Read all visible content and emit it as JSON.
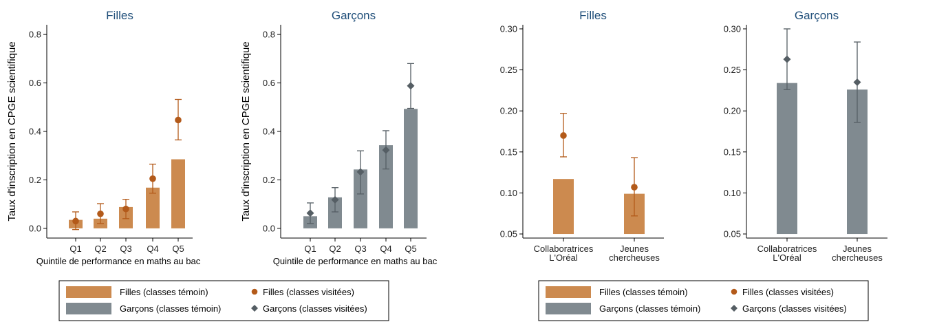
{
  "colors": {
    "filles": "#cc8a4f",
    "filles_dark": "#b35a1a",
    "garcons": "#808a90",
    "garcons_dark": "#555e64",
    "title": "#1f4e79"
  },
  "chart_data": [
    {
      "type": "bar",
      "title": "Filles",
      "xlabel": "Quintile de performance en maths au bac",
      "ylabel": "Taux d'inscription en CPGE scientifique",
      "categories": [
        "Q1",
        "Q2",
        "Q3",
        "Q4",
        "Q5"
      ],
      "ylim": [
        -0.04,
        0.84
      ],
      "yticks": [
        0.0,
        0.2,
        0.4,
        0.6,
        0.8
      ],
      "ytick_labels": [
        "0.0",
        "0.2",
        "0.4",
        "0.6",
        "0.8"
      ],
      "series": [
        {
          "name": "Filles (classes témoin)",
          "kind": "bar",
          "values": [
            0.035,
            0.04,
            0.088,
            0.168,
            0.285
          ]
        },
        {
          "name": "Filles (classes visitées)",
          "kind": "point",
          "marker": "circle",
          "values": [
            0.03,
            0.06,
            0.08,
            0.205,
            0.447
          ],
          "ci_low": [
            -0.005,
            0.02,
            0.04,
            0.145,
            0.365
          ],
          "ci_high": [
            0.068,
            0.102,
            0.12,
            0.265,
            0.532
          ]
        }
      ]
    },
    {
      "type": "bar",
      "title": "Garçons",
      "xlabel": "Quintile de performance en maths au bac",
      "ylabel": "Taux d'inscription en CPGE scientifique",
      "categories": [
        "Q1",
        "Q2",
        "Q3",
        "Q4",
        "Q5"
      ],
      "ylim": [
        -0.04,
        0.84
      ],
      "yticks": [
        0.0,
        0.2,
        0.4,
        0.6,
        0.8
      ],
      "ytick_labels": [
        "0.0",
        "0.2",
        "0.4",
        "0.6",
        "0.8"
      ],
      "series": [
        {
          "name": "Garçons (classes témoin)",
          "kind": "bar",
          "values": [
            0.05,
            0.128,
            0.243,
            0.343,
            0.493
          ]
        },
        {
          "name": "Garçons (classes visitées)",
          "kind": "point",
          "marker": "diamond",
          "values": [
            0.063,
            0.118,
            0.233,
            0.323,
            0.588
          ],
          "ci_low": [
            0.02,
            0.068,
            0.142,
            0.245,
            0.495
          ],
          "ci_high": [
            0.105,
            0.168,
            0.32,
            0.403,
            0.68
          ]
        }
      ]
    },
    {
      "type": "bar",
      "title": "Filles",
      "xlabel": "",
      "ylabel": "",
      "categories": [
        [
          "Collaboratrices",
          "L'Oréal"
        ],
        [
          "Jeunes",
          "chercheuses"
        ]
      ],
      "ylim": [
        0.045,
        0.305
      ],
      "bar_base": 0.05,
      "yticks": [
        0.05,
        0.1,
        0.15,
        0.2,
        0.25,
        0.3
      ],
      "ytick_labels": [
        "0.05",
        "0.10",
        "0.15",
        "0.20",
        "0.25",
        "0.30"
      ],
      "series": [
        {
          "name": "Filles (classes témoin)",
          "kind": "bar",
          "values": [
            0.117,
            0.099
          ]
        },
        {
          "name": "Filles (classes visitées)",
          "kind": "point",
          "marker": "circle",
          "values": [
            0.17,
            0.107
          ],
          "ci_low": [
            0.144,
            0.072
          ],
          "ci_high": [
            0.197,
            0.143
          ]
        }
      ]
    },
    {
      "type": "bar",
      "title": "Garçons",
      "xlabel": "",
      "ylabel": "",
      "categories": [
        [
          "Collaboratrices",
          "L'Oréal"
        ],
        [
          "Jeunes",
          "chercheuses"
        ]
      ],
      "ylim": [
        0.045,
        0.305
      ],
      "bar_base": 0.05,
      "yticks": [
        0.05,
        0.1,
        0.15,
        0.2,
        0.25,
        0.3
      ],
      "ytick_labels": [
        "0.05",
        "0.10",
        "0.15",
        "0.20",
        "0.25",
        "0.30"
      ],
      "series": [
        {
          "name": "Garçons (classes témoin)",
          "kind": "bar",
          "values": [
            0.234,
            0.226
          ]
        },
        {
          "name": "Garçons (classes visitées)",
          "kind": "point",
          "marker": "diamond",
          "values": [
            0.263,
            0.235
          ],
          "ci_low": [
            0.226,
            0.186
          ],
          "ci_high": [
            0.3,
            0.284
          ]
        }
      ]
    }
  ],
  "legend": {
    "entries": [
      {
        "label": "Filles (classes témoin)",
        "kind": "bar",
        "color_key": "filles"
      },
      {
        "label": "Filles (classes visitées)",
        "kind": "circle",
        "color_key": "filles_dark"
      },
      {
        "label": "Garçons (classes témoin)",
        "kind": "bar",
        "color_key": "garcons"
      },
      {
        "label": "Garçons (classes visitées)",
        "kind": "diamond",
        "color_key": "garcons_dark"
      }
    ]
  }
}
